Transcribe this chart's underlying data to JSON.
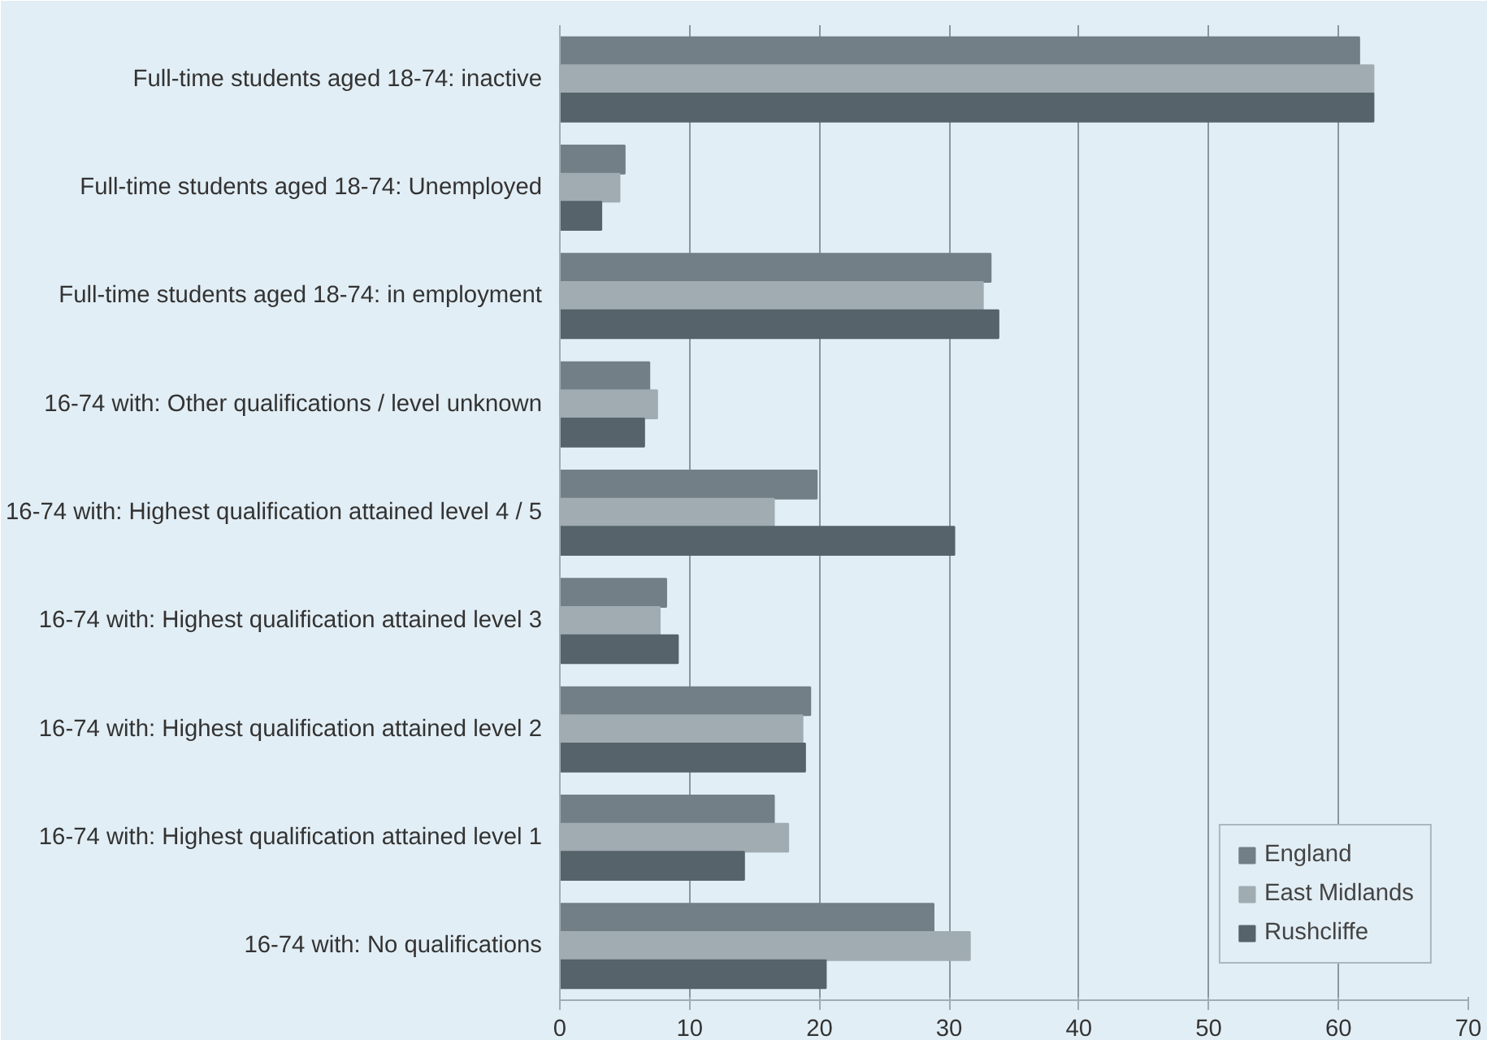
{
  "chart_data": {
    "type": "bar",
    "orientation": "horizontal",
    "categories": [
      "Full-time students aged 18-74: inactive",
      "Full-time students aged 18-74: Unemployed",
      "Full-time students aged 18-74: in employment",
      "16-74 with: Other qualifications / level unknown",
      "16-74 with: Highest qualification attained level 4 / 5",
      "16-74 with: Highest qualification attained level 3",
      "16-74 with: Highest qualification attained level 2",
      "16-74 with: Highest qualification attained level 1",
      "16-74 with: No qualifications"
    ],
    "series": [
      {
        "name": "England",
        "color": "#737f87",
        "values": [
          61.6,
          5.0,
          33.2,
          6.9,
          19.8,
          8.2,
          19.3,
          16.5,
          28.8
        ]
      },
      {
        "name": "East Midlands",
        "color": "#a0acb2",
        "values": [
          62.7,
          4.6,
          32.6,
          7.5,
          16.5,
          7.7,
          18.7,
          17.6,
          31.6
        ]
      },
      {
        "name": "Rushcliffe",
        "color": "#56636b",
        "values": [
          62.7,
          3.2,
          33.8,
          6.5,
          30.4,
          9.1,
          18.9,
          14.2,
          20.5
        ]
      }
    ],
    "xlim": [
      0,
      70
    ],
    "xticks": [
      0,
      10,
      20,
      30,
      40,
      50,
      60,
      70
    ],
    "grid": "x",
    "legend": "bottom right"
  }
}
